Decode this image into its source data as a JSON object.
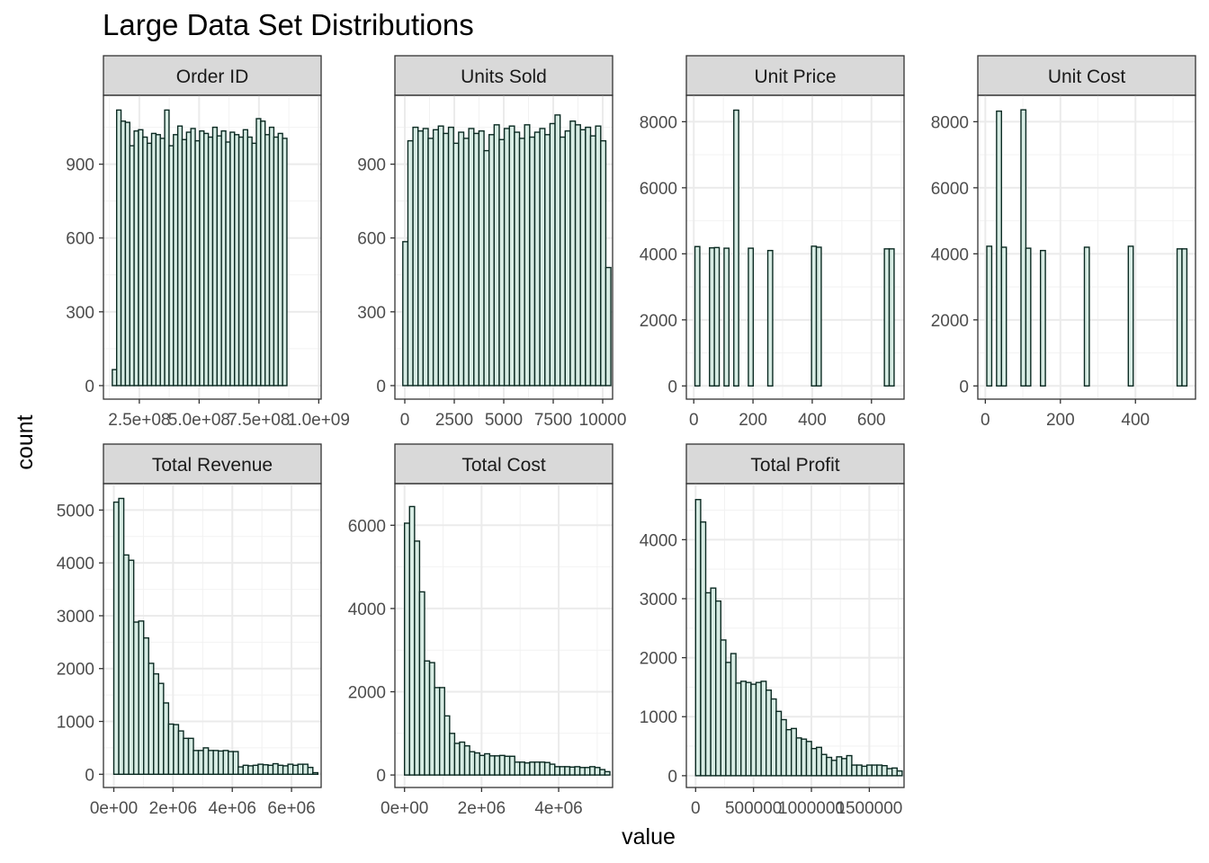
{
  "chart_data": {
    "type": "bar",
    "title": "Large Data Set Distributions",
    "xlabel": "value",
    "ylabel": "count",
    "fill_color": "#d7ece4",
    "outline_color": "#0b2a22",
    "grid": true,
    "panels": [
      {
        "name": "Order ID",
        "xlim": [
          100000000,
          1010000000
        ],
        "ylim": [
          -55,
          1180
        ],
        "x_ticks": [
          250000000,
          500000000,
          750000000,
          1000000000
        ],
        "x_tick_labels": [
          "2.5e+08",
          "5.0e+08",
          "7.5e+08",
          "1.0e+09"
        ],
        "y_ticks": [
          0,
          300,
          600,
          900
        ],
        "bin_start": 137000000,
        "bin_width": 18250000,
        "counts": [
          65,
          1120,
          1075,
          1070,
          975,
          1035,
          1040,
          1010,
          985,
          1025,
          1020,
          1005,
          1120,
          975,
          1020,
          1055,
          1000,
          1030,
          1045,
          995,
          1035,
          1025,
          1010,
          1050,
          1015,
          1035,
          990,
          1030,
          1020,
          1010,
          1040,
          1010,
          985,
          1085,
          1075,
          1020,
          1050,
          1010,
          1025,
          1005
        ]
      },
      {
        "name": "Units Sold",
        "xlim": [
          -500,
          10500
        ],
        "ylim": [
          -55,
          1180
        ],
        "x_ticks": [
          0,
          2500,
          5000,
          7500,
          10000
        ],
        "x_tick_labels": [
          "0",
          "2500",
          "5000",
          "7500",
          "10000"
        ],
        "y_ticks": [
          0,
          300,
          600,
          900
        ],
        "bin_start": -100,
        "bin_width": 256.4,
        "counts": [
          585,
          995,
          1050,
          1035,
          1045,
          1005,
          1040,
          1055,
          1025,
          1050,
          985,
          1030,
          1005,
          1045,
          1025,
          1035,
          955,
          1020,
          1060,
          1000,
          1045,
          1055,
          1030,
          1005,
          1060,
          1010,
          1030,
          1045,
          1020,
          1065,
          1100,
          1010,
          1035,
          1075,
          1060,
          1040,
          1050,
          1015,
          1055,
          995,
          480
        ]
      },
      {
        "name": "Unit Price",
        "xlim": [
          -25,
          710
        ],
        "ylim": [
          -400,
          8800
        ],
        "x_ticks": [
          0,
          200,
          400,
          600
        ],
        "x_tick_labels": [
          "0",
          "200",
          "400",
          "600"
        ],
        "y_ticks": [
          0,
          2000,
          4000,
          6000,
          8000
        ],
        "bin_start": 4,
        "bin_width": 16.4,
        "counts": [
          4220,
          0,
          0,
          4180,
          4190,
          0,
          4170,
          0,
          8350,
          0,
          0,
          4170,
          0,
          0,
          0,
          4100,
          0,
          0,
          0,
          0,
          0,
          0,
          0,
          0,
          4230,
          4200,
          0,
          0,
          0,
          0,
          0,
          0,
          0,
          0,
          0,
          0,
          0,
          0,
          0,
          4150,
          4150
        ]
      },
      {
        "name": "Unit Cost",
        "xlim": [
          -20,
          560
        ],
        "ylim": [
          -400,
          8800
        ],
        "x_ticks": [
          0,
          200,
          400
        ],
        "x_tick_labels": [
          "0",
          "200",
          "400"
        ],
        "y_ticks": [
          0,
          2000,
          4000,
          6000,
          8000
        ],
        "bin_start": 4,
        "bin_width": 13,
        "counts": [
          4230,
          0,
          8320,
          4200,
          0,
          0,
          0,
          8360,
          4170,
          0,
          0,
          4100,
          0,
          0,
          0,
          0,
          0,
          0,
          0,
          0,
          4200,
          0,
          0,
          0,
          0,
          0,
          0,
          0,
          0,
          4230,
          0,
          0,
          0,
          0,
          0,
          0,
          0,
          0,
          0,
          4150,
          4150
        ]
      },
      {
        "name": "Total Revenue",
        "xlim": [
          -350000,
          7000000
        ],
        "ylim": [
          -250,
          5500
        ],
        "x_ticks": [
          0,
          2000000,
          4000000,
          6000000
        ],
        "x_tick_labels": [
          "0e+00",
          "2e+06",
          "4e+06",
          "6e+06"
        ],
        "y_ticks": [
          0,
          1000,
          2000,
          3000,
          4000,
          5000
        ],
        "bin_start": 0,
        "bin_width": 168000,
        "counts": [
          5150,
          5220,
          4150,
          4050,
          2880,
          2900,
          2580,
          2100,
          1900,
          1720,
          1350,
          950,
          940,
          820,
          680,
          680,
          450,
          450,
          500,
          450,
          450,
          440,
          450,
          430,
          430,
          140,
          170,
          160,
          170,
          190,
          180,
          170,
          200,
          170,
          160,
          190,
          170,
          190,
          190,
          130,
          30
        ]
      },
      {
        "name": "Total Cost",
        "xlim": [
          -250000,
          5400000
        ],
        "ylim": [
          -300,
          7000
        ],
        "x_ticks": [
          0,
          2000000,
          4000000
        ],
        "x_tick_labels": [
          "0e+00",
          "2e+06",
          "4e+06"
        ],
        "y_ticks": [
          0,
          2000,
          4000,
          6000
        ],
        "bin_start": 0,
        "bin_width": 130000,
        "counts": [
          6050,
          6450,
          5620,
          4400,
          2740,
          2700,
          2100,
          2100,
          1420,
          1000,
          760,
          790,
          700,
          560,
          530,
          470,
          510,
          460,
          460,
          470,
          450,
          450,
          310,
          310,
          290,
          310,
          310,
          310,
          300,
          260,
          200,
          200,
          200,
          190,
          200,
          180,
          180,
          200,
          180,
          130,
          80
        ]
      },
      {
        "name": "Total Profit",
        "xlim": [
          -80000,
          1800000
        ],
        "ylim": [
          -200,
          4950
        ],
        "x_ticks": [
          0,
          500000,
          1000000,
          1500000
        ],
        "x_tick_labels": [
          "0",
          "500000",
          "1000000",
          "1500000"
        ],
        "y_ticks": [
          0,
          1000,
          2000,
          3000,
          4000
        ],
        "bin_start": 0,
        "bin_width": 43500,
        "counts": [
          4680,
          4300,
          3100,
          3180,
          2960,
          2300,
          1920,
          2070,
          1570,
          1600,
          1580,
          1550,
          1580,
          1600,
          1450,
          1300,
          1090,
          950,
          780,
          800,
          640,
          620,
          580,
          460,
          480,
          360,
          310,
          260,
          320,
          290,
          340,
          180,
          180,
          160,
          180,
          180,
          180,
          170,
          120,
          130,
          80
        ]
      }
    ]
  }
}
